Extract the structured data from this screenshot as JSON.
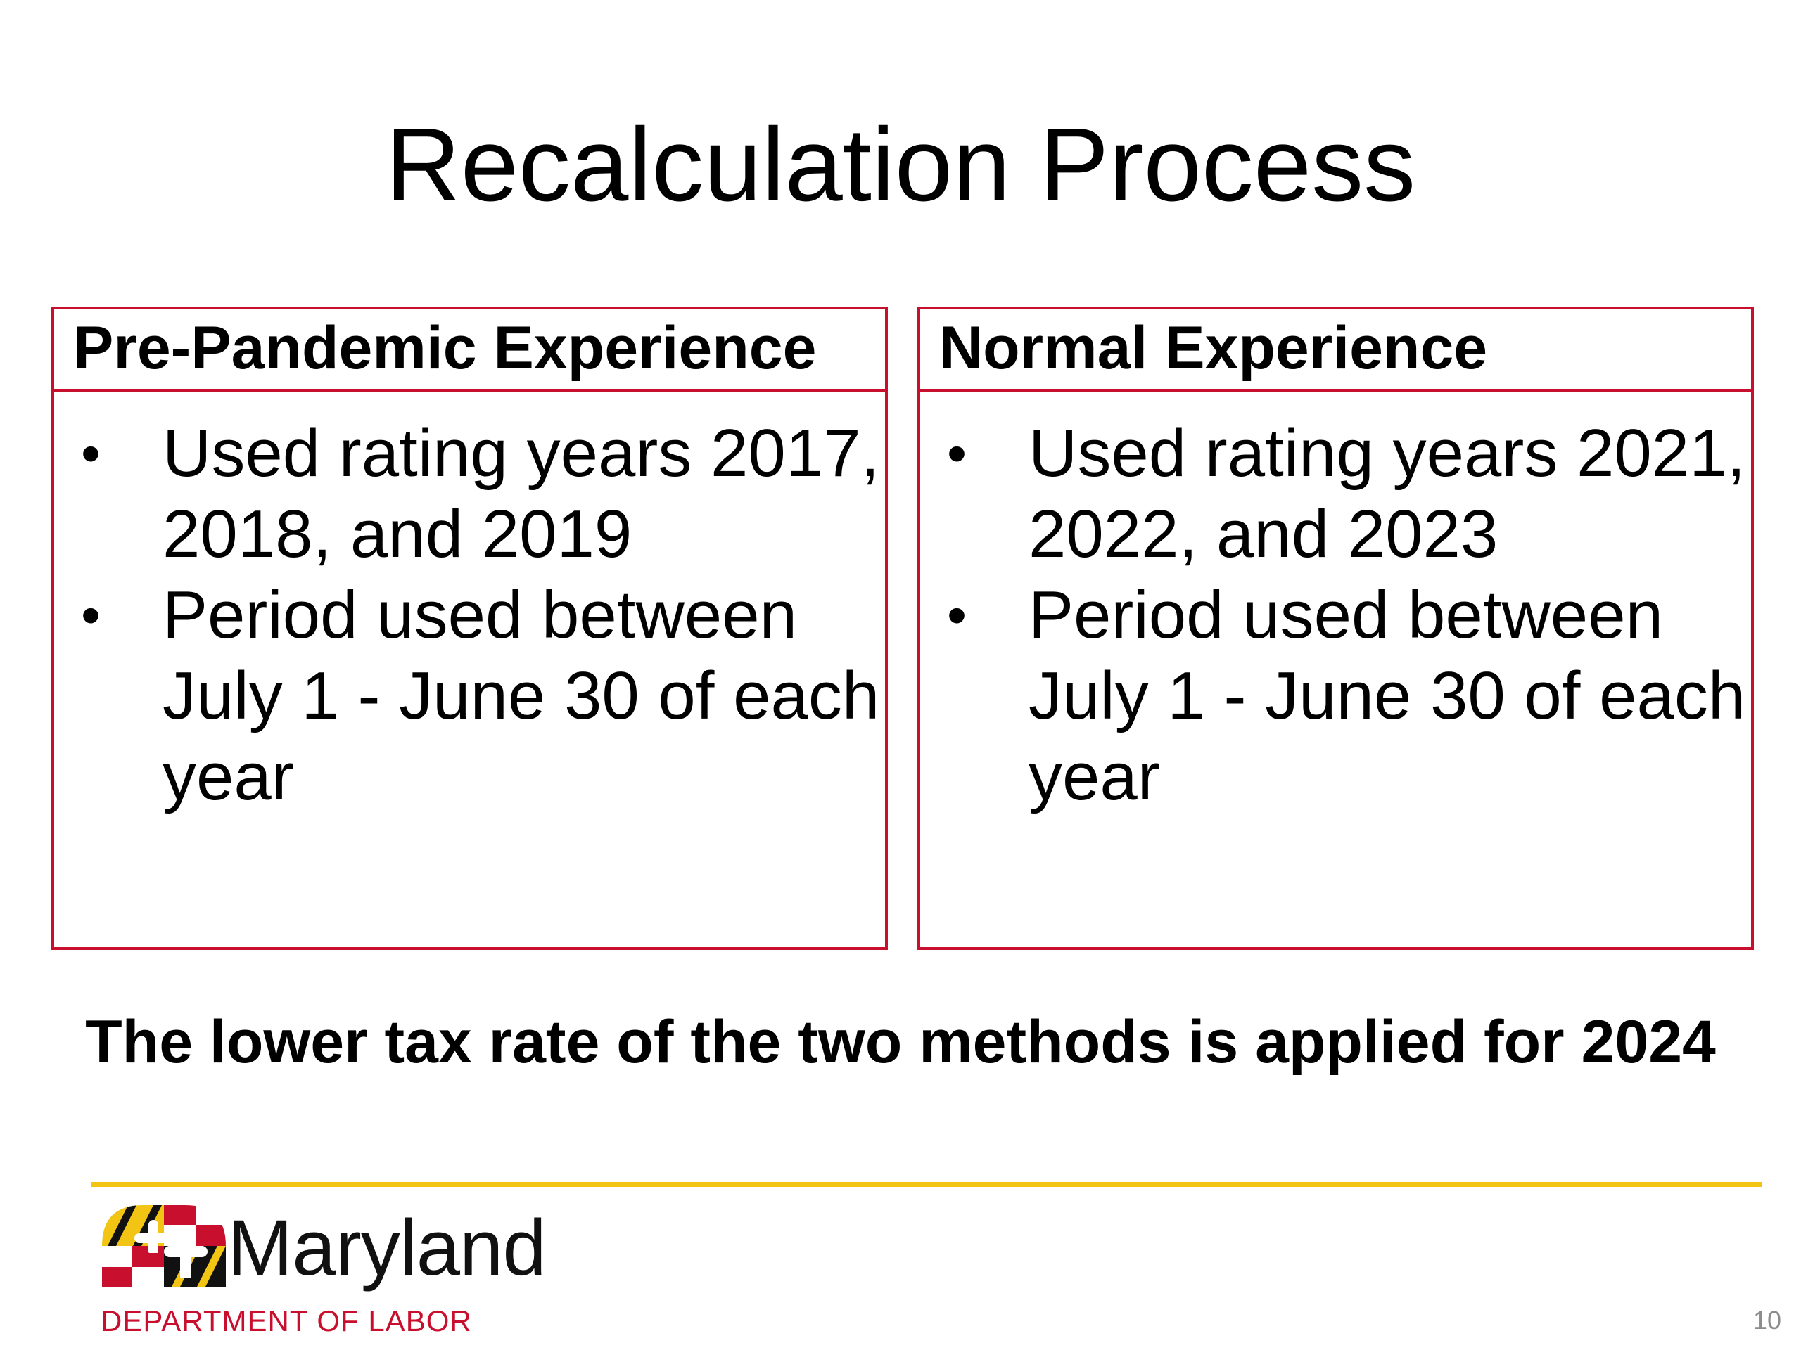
{
  "slide": {
    "title": "Recalculation Process",
    "conclusion": "The lower tax rate of the two methods is applied for 2024",
    "page_number": "10"
  },
  "panels": [
    {
      "heading": "Pre-Pandemic Experience",
      "bullets": [
        "Used rating years 2017, 2018, and 2019",
        "Period used between July 1 - June 30 of each year"
      ]
    },
    {
      "heading": "Normal Experience",
      "bullets": [
        "Used rating years 2021, 2022, and 2023",
        "Period used between July 1 - June 30 of each year"
      ]
    }
  ],
  "bullet_glyph": "•",
  "logo": {
    "wordmark": "Maryland",
    "subtitle": "DEPARTMENT OF LABOR"
  },
  "colors": {
    "panel_border": "#c8102e",
    "divider": "#f2c414",
    "logo_subtitle": "#c8102e",
    "page_number": "#8c8c8c"
  }
}
